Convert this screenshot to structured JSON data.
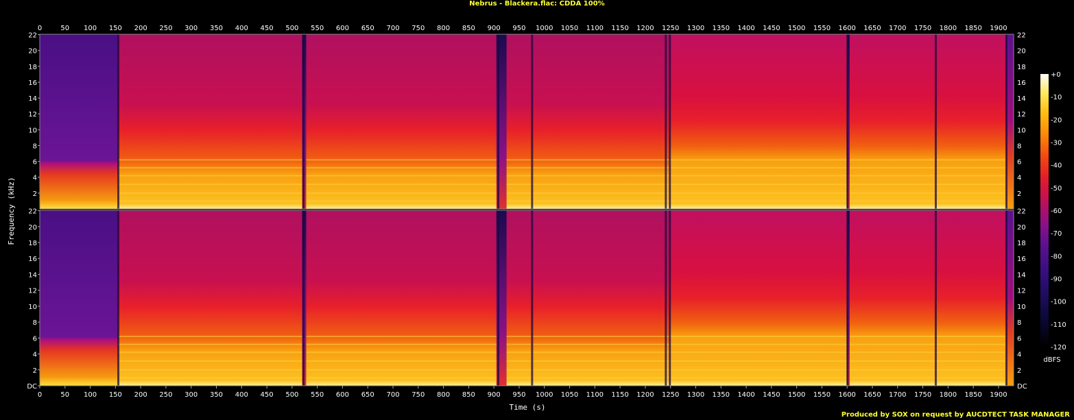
{
  "title": "Nebrus - Blackera.flac: CDDA 100%",
  "footer": "Produced by SOX on request by AUCDTECT TASK MANAGER",
  "chart_data": {
    "type": "heatmap",
    "title": "Nebrus - Blackera.flac: CDDA 100%",
    "xlabel": "Time (s)",
    "ylabel": "Frequency (kHz)",
    "colorbar_label": "dBFS",
    "xlim": [
      0,
      1930
    ],
    "ylim": [
      0,
      22.05
    ],
    "x_ticks": [
      "0",
      "50",
      "100",
      "150",
      "200",
      "250",
      "300",
      "350",
      "400",
      "450",
      "500",
      "550",
      "600",
      "650",
      "700",
      "750",
      "800",
      "850",
      "900",
      "950",
      "1000",
      "1050",
      "1100",
      "1150",
      "1200",
      "1250",
      "1300",
      "1350",
      "1400",
      "1450",
      "1500",
      "1550",
      "1600",
      "1650",
      "1700",
      "1750",
      "1800",
      "1850",
      "1900"
    ],
    "y_ticks": [
      "DC",
      "2",
      "4",
      "6",
      "8",
      "10",
      "12",
      "14",
      "16",
      "18",
      "20",
      "22"
    ],
    "colorbar_ticks": [
      "+0",
      "-10",
      "-20",
      "-30",
      "-40",
      "-50",
      "-60",
      "-70",
      "-80",
      "-90",
      "-100",
      "-110",
      "-120"
    ],
    "colorbar_range": [
      -120,
      0
    ],
    "channels": 2,
    "segments": [
      {
        "start": 0,
        "end": 155,
        "type": "intro"
      },
      {
        "start": 155,
        "end": 520,
        "type": "full"
      },
      {
        "start": 520,
        "end": 528,
        "type": "gap"
      },
      {
        "start": 528,
        "end": 905,
        "type": "full"
      },
      {
        "start": 905,
        "end": 925,
        "type": "gap"
      },
      {
        "start": 925,
        "end": 1248,
        "type": "full"
      },
      {
        "start": 1248,
        "end": 1600,
        "type": "bright"
      },
      {
        "start": 1600,
        "end": 1605,
        "type": "gap"
      },
      {
        "start": 1605,
        "end": 1915,
        "type": "bright"
      },
      {
        "start": 1915,
        "end": 1930,
        "type": "fade"
      }
    ],
    "dark_lines_s": [
      155,
      522,
      908,
      975,
      1240,
      1248,
      1600,
      1775,
      1915
    ]
  }
}
